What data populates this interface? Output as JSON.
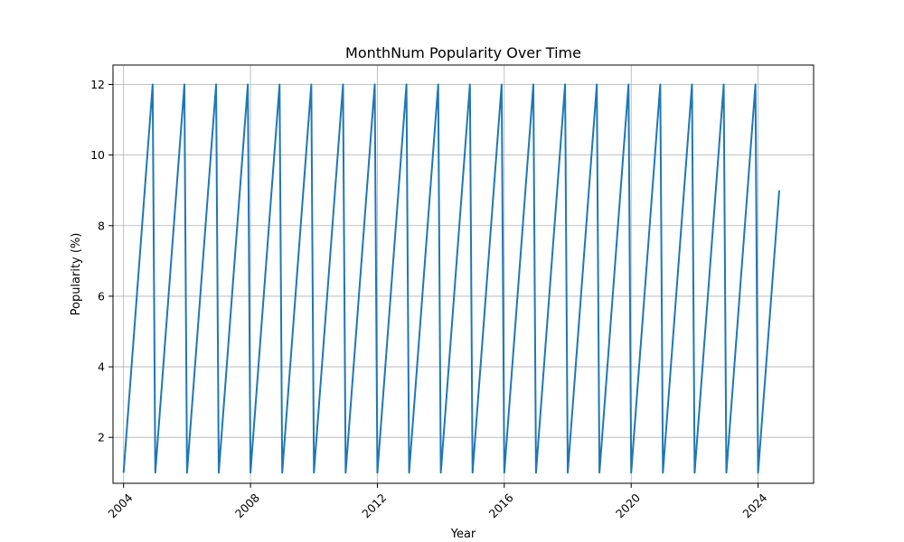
{
  "chart_data": {
    "type": "line",
    "title": "MonthNum Popularity Over Time",
    "xlabel": "Year",
    "ylabel": "Popularity (%)",
    "x_axis": {
      "kind": "date",
      "ticks": [
        "2004",
        "2008",
        "2012",
        "2016",
        "2020",
        "2024"
      ],
      "tick_label_rotation": 45,
      "range": [
        "2003-09",
        "2025-10"
      ]
    },
    "y_axis": {
      "ticks": [
        2,
        4,
        6,
        8,
        10,
        12
      ],
      "range": [
        0.7,
        12.55
      ]
    },
    "grid": true,
    "line_color": "#1f77b4",
    "series": [
      {
        "x_start": "2004-01",
        "x_end": "2024-09",
        "frequency": "monthly",
        "pattern": "value equals month number (1–12), resets each January",
        "values": [
          1,
          2,
          3,
          4,
          5,
          6,
          7,
          8,
          9,
          10,
          11,
          12,
          1,
          2,
          3,
          4,
          5,
          6,
          7,
          8,
          9,
          10,
          11,
          12,
          1,
          2,
          3,
          4,
          5,
          6,
          7,
          8,
          9,
          10,
          11,
          12,
          1,
          2,
          3,
          4,
          5,
          6,
          7,
          8,
          9,
          10,
          11,
          12,
          1,
          2,
          3,
          4,
          5,
          6,
          7,
          8,
          9,
          10,
          11,
          12,
          1,
          2,
          3,
          4,
          5,
          6,
          7,
          8,
          9,
          10,
          11,
          12,
          1,
          2,
          3,
          4,
          5,
          6,
          7,
          8,
          9,
          10,
          11,
          12,
          1,
          2,
          3,
          4,
          5,
          6,
          7,
          8,
          9,
          10,
          11,
          12,
          1,
          2,
          3,
          4,
          5,
          6,
          7,
          8,
          9,
          10,
          11,
          12,
          1,
          2,
          3,
          4,
          5,
          6,
          7,
          8,
          9,
          10,
          11,
          12,
          1,
          2,
          3,
          4,
          5,
          6,
          7,
          8,
          9,
          10,
          11,
          12,
          1,
          2,
          3,
          4,
          5,
          6,
          7,
          8,
          9,
          10,
          11,
          12,
          1,
          2,
          3,
          4,
          5,
          6,
          7,
          8,
          9,
          10,
          11,
          12,
          1,
          2,
          3,
          4,
          5,
          6,
          7,
          8,
          9,
          10,
          11,
          12,
          1,
          2,
          3,
          4,
          5,
          6,
          7,
          8,
          9,
          10,
          11,
          12,
          1,
          2,
          3,
          4,
          5,
          6,
          7,
          8,
          9,
          10,
          11,
          12,
          1,
          2,
          3,
          4,
          5,
          6,
          7,
          8,
          9,
          10,
          11,
          12,
          1,
          2,
          3,
          4,
          5,
          6,
          7,
          8,
          9,
          10,
          11,
          12,
          1,
          2,
          3,
          4,
          5,
          6,
          7,
          8,
          9,
          10,
          11,
          12,
          1,
          2,
          3,
          4,
          5,
          6,
          7,
          8,
          9,
          10,
          11,
          12,
          1,
          2,
          3,
          4,
          5,
          6,
          7,
          8,
          9
        ]
      }
    ]
  }
}
